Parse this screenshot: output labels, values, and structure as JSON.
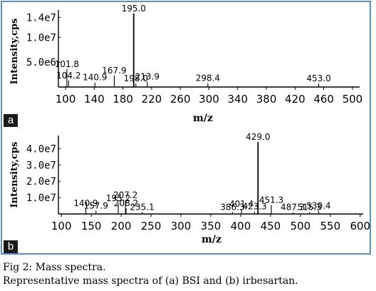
{
  "caption": {
    "line1": "Fig 2: Mass spectra.",
    "line2": "Representative mass spectra of (a) BSI and (b) irbesartan."
  },
  "chart_data": [
    {
      "panel": "a",
      "type": "bar",
      "xlabel": "m/z",
      "ylabel": "Intensity,cps",
      "xlim": [
        90,
        510
      ],
      "ylim": [
        0,
        15500000
      ],
      "x_ticks": [
        100,
        140,
        180,
        220,
        260,
        300,
        340,
        380,
        420,
        460,
        500
      ],
      "y_ticks": [
        {
          "value": 5000000,
          "label": "5.0e6"
        },
        {
          "value": 10000000,
          "label": "1.0e7"
        },
        {
          "value": 14000000,
          "label": "1.4e7"
        }
      ],
      "peaks": [
        {
          "x": 101.8,
          "y": 3600000,
          "label": "101.8"
        },
        {
          "x": 104.2,
          "y": 1300000,
          "label": "104.2"
        },
        {
          "x": 140.9,
          "y": 900000,
          "label": "140.9"
        },
        {
          "x": 167.9,
          "y": 2300000,
          "label": "167.9"
        },
        {
          "x": 195.0,
          "y": 14800000,
          "label": "195.0"
        },
        {
          "x": 198.0,
          "y": 700000,
          "label": "198.0"
        },
        {
          "x": 213.9,
          "y": 1100000,
          "label": "213.9"
        },
        {
          "x": 298.4,
          "y": 800000,
          "label": "298.4"
        },
        {
          "x": 453.0,
          "y": 700000,
          "label": "453.0"
        }
      ]
    },
    {
      "panel": "b",
      "type": "bar",
      "xlabel": "m/z",
      "ylabel": "Intensity,cps",
      "xlim": [
        95,
        605
      ],
      "ylim": [
        0,
        48000000
      ],
      "x_ticks": [
        100,
        150,
        200,
        250,
        300,
        350,
        400,
        450,
        500,
        550,
        600
      ],
      "y_ticks": [
        {
          "value": 10000000,
          "label": "1.0e7"
        },
        {
          "value": 20000000,
          "label": "2.0e7"
        },
        {
          "value": 30000000,
          "label": "3.0e7"
        },
        {
          "value": 40000000,
          "label": "4.0e7"
        }
      ],
      "peaks": [
        {
          "x": 140.9,
          "y": 3500000,
          "label": "140.9"
        },
        {
          "x": 157.9,
          "y": 2000000,
          "label": "157.9"
        },
        {
          "x": 195.2,
          "y": 6500000,
          "label": "195.2"
        },
        {
          "x": 207.2,
          "y": 8500000,
          "label": "207.2"
        },
        {
          "x": 208.2,
          "y": 3500000,
          "label": "208.2"
        },
        {
          "x": 235.1,
          "y": 1200000,
          "label": "235.1"
        },
        {
          "x": 386.3,
          "y": 1200000,
          "label": "386.3"
        },
        {
          "x": 401.4,
          "y": 3000000,
          "label": "401.4"
        },
        {
          "x": 423.3,
          "y": 1500000,
          "label": "423.3"
        },
        {
          "x": 429.0,
          "y": 44000000,
          "label": "429.0"
        },
        {
          "x": 451.3,
          "y": 5500000,
          "label": "451.3"
        },
        {
          "x": 487.3,
          "y": 1000000,
          "label": "487.3"
        },
        {
          "x": 515.3,
          "y": 1000000,
          "label": "515.3"
        },
        {
          "x": 530.4,
          "y": 2000000,
          "label": "530.4"
        }
      ]
    }
  ]
}
